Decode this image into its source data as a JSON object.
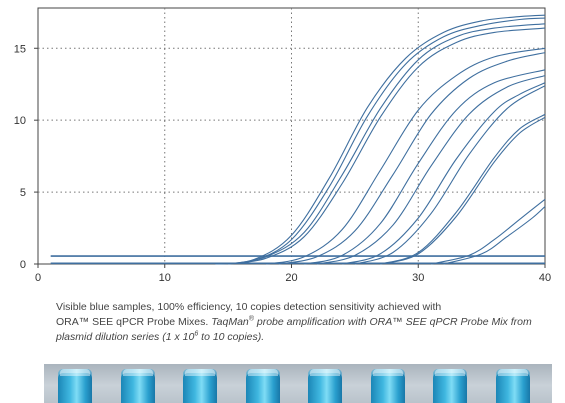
{
  "chart_data": {
    "type": "line",
    "title": "",
    "xlabel": "",
    "ylabel": "",
    "xlim": [
      0,
      40
    ],
    "ylim": [
      0,
      17.8
    ],
    "xticks": [
      0,
      10,
      20,
      30,
      40
    ],
    "yticks": [
      0,
      5,
      10,
      15
    ],
    "grid": true,
    "line_color": "#3f6f9f",
    "baselines": [
      {
        "x": [
          1,
          40
        ],
        "y": [
          0.55,
          0.55
        ]
      },
      {
        "x": [
          1,
          40
        ],
        "y": [
          0.05,
          0.05
        ]
      }
    ],
    "series": [
      {
        "x": [
          14,
          17,
          20,
          23,
          26,
          29,
          32,
          35,
          38,
          40
        ],
        "y": [
          0,
          0.3,
          2.0,
          6.0,
          10.9,
          14.3,
          16.1,
          16.9,
          17.2,
          17.3
        ]
      },
      {
        "x": [
          14,
          17,
          20,
          23,
          26,
          29,
          32,
          35,
          38,
          40
        ],
        "y": [
          0,
          0.25,
          1.7,
          5.4,
          10.3,
          13.9,
          15.8,
          16.6,
          17.0,
          17.1
        ]
      },
      {
        "x": [
          15,
          18,
          21,
          24,
          27,
          30,
          33,
          36,
          40
        ],
        "y": [
          0,
          0.5,
          2.2,
          6.2,
          10.8,
          14.2,
          15.8,
          16.4,
          16.7
        ]
      },
      {
        "x": [
          15,
          18,
          21,
          24,
          27,
          30,
          33,
          36,
          40
        ],
        "y": [
          0,
          0.4,
          1.9,
          5.6,
          10.2,
          13.7,
          15.4,
          16.1,
          16.4
        ]
      },
      {
        "x": [
          18,
          21,
          24,
          27,
          30,
          33,
          36,
          40
        ],
        "y": [
          0,
          0.5,
          2.4,
          6.5,
          10.7,
          13.1,
          14.4,
          15.0
        ]
      },
      {
        "x": [
          19,
          22,
          25,
          28,
          31,
          34,
          37,
          40
        ],
        "y": [
          0,
          0.5,
          2.3,
          6.2,
          10.4,
          12.9,
          14.1,
          14.7
        ]
      },
      {
        "x": [
          21,
          24,
          27,
          30,
          33,
          36,
          40
        ],
        "y": [
          0,
          0.6,
          2.8,
          7.0,
          10.7,
          12.6,
          13.5
        ]
      },
      {
        "x": [
          22,
          25,
          28,
          31,
          34,
          37,
          40
        ],
        "y": [
          0,
          0.6,
          2.7,
          6.8,
          10.4,
          12.3,
          13.1
        ]
      },
      {
        "x": [
          24,
          27,
          30,
          33,
          36,
          38,
          40
        ],
        "y": [
          0,
          0.7,
          3.2,
          7.3,
          10.6,
          11.8,
          12.6
        ]
      },
      {
        "x": [
          25,
          28,
          31,
          34,
          37,
          40
        ],
        "y": [
          0,
          0.8,
          3.5,
          7.6,
          10.8,
          12.4
        ]
      },
      {
        "x": [
          27,
          30,
          33,
          36,
          38,
          40
        ],
        "y": [
          0,
          0.8,
          3.6,
          7.4,
          9.4,
          10.4
        ]
      },
      {
        "x": [
          27,
          30,
          33,
          36,
          38,
          40
        ],
        "y": [
          0,
          0.7,
          3.3,
          7.1,
          9.1,
          10.2
        ]
      },
      {
        "x": [
          31,
          34,
          36,
          38,
          40
        ],
        "y": [
          0,
          0.6,
          1.7,
          3.1,
          4.5
        ]
      },
      {
        "x": [
          32,
          35,
          37,
          39,
          40
        ],
        "y": [
          0,
          0.7,
          1.9,
          3.2,
          4.0
        ]
      }
    ]
  },
  "caption": {
    "line1": "Visible blue samples, 100% efficiency, 10 copies detection sensitivity achieved with",
    "line2_plain": "ORA™ SEE qPCR Probe Mixes. ",
    "line2_italic": "TaqMan",
    "reg": "®",
    "line2_italic_rest": " probe amplification with ORA™ SEE qPCR Probe Mix from",
    "line3_a": "plasmid dilution series (1 x 10",
    "line3_sup": "6",
    "line3_b": " to 10 copies)."
  },
  "photo": {
    "tube_color": "#3fb7e0",
    "tube_count": 8
  }
}
